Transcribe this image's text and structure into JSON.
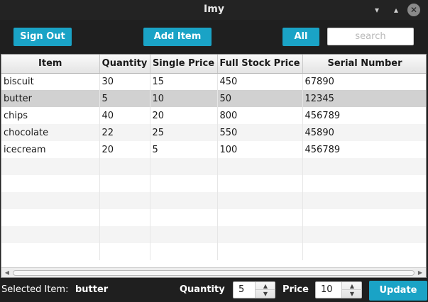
{
  "window": {
    "title": "Imy",
    "minimize_glyph": "▾",
    "maximize_glyph": "▴",
    "close_glyph": "✕"
  },
  "toolbar": {
    "sign_out_label": "Sign Out",
    "add_item_label": "Add Item",
    "all_label": "All",
    "search_placeholder": "search"
  },
  "table": {
    "columns": [
      "Item",
      "Quantity",
      "Single Price",
      "Full Stock Price",
      "Serial Number"
    ],
    "rows": [
      [
        "biscuit",
        "30",
        "15",
        "450",
        "67890"
      ],
      [
        "butter",
        "5",
        "10",
        "50",
        "12345"
      ],
      [
        "chips",
        "40",
        "20",
        "800",
        "456789"
      ],
      [
        "chocolate",
        "22",
        "25",
        "550",
        "45890"
      ],
      [
        "icecream",
        "20",
        "5",
        "100",
        "456789"
      ]
    ],
    "selected_row_index": 1
  },
  "bottom": {
    "selected_label": "Selected Item:",
    "selected_value": "butter",
    "quantity_label": "Quantity",
    "quantity_value": "5",
    "price_label": "Price",
    "price_value": "10",
    "update_label": "Update"
  },
  "colors": {
    "accent": "#1aa3c6",
    "background": "#1f1f1f",
    "selected_row": "#d1d1d1"
  },
  "icons": {
    "spin_up": "▲",
    "spin_down": "▼",
    "scroll_left": "◀",
    "scroll_right": "▶"
  }
}
